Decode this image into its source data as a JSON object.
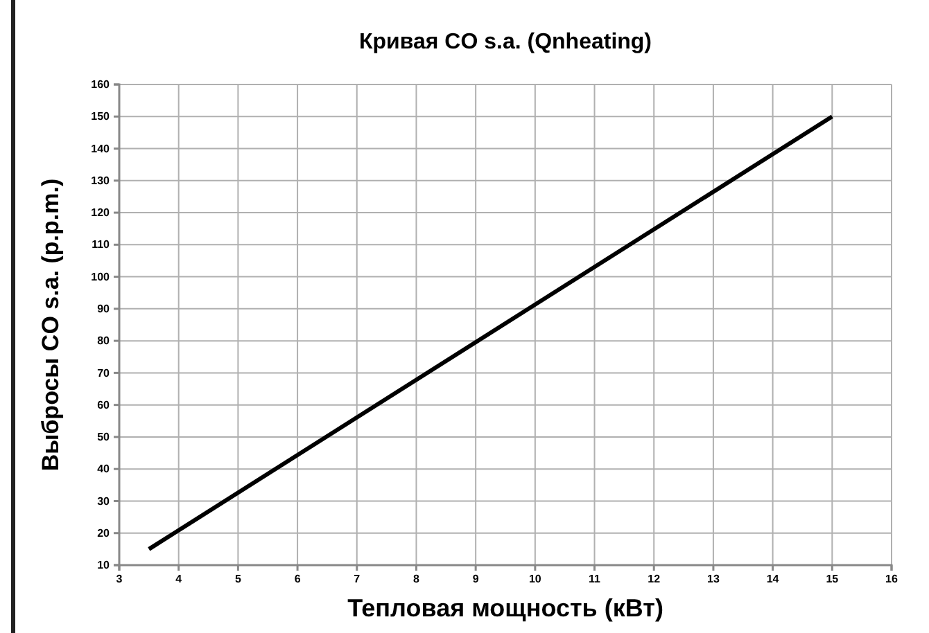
{
  "chart_data": {
    "type": "line",
    "title": "Кривая CO s.a. (Qnheating)",
    "xlabel": "Тепловая мощность (кВт)",
    "ylabel": "Выбросы CO s.a. (p.p.m.)",
    "x": [
      3.5,
      15
    ],
    "series": [
      {
        "color": "#000000",
        "values": [
          15,
          150
        ]
      }
    ],
    "xlim": [
      3,
      16
    ],
    "xticks": [
      3,
      4,
      5,
      6,
      7,
      8,
      9,
      10,
      11,
      12,
      13,
      14,
      15,
      16
    ],
    "ylim": [
      10,
      160
    ],
    "yticks": [
      10,
      20,
      30,
      40,
      50,
      60,
      70,
      80,
      90,
      100,
      110,
      120,
      130,
      140,
      150,
      160
    ],
    "grid": true,
    "marker": "none",
    "line_style": "solid"
  }
}
